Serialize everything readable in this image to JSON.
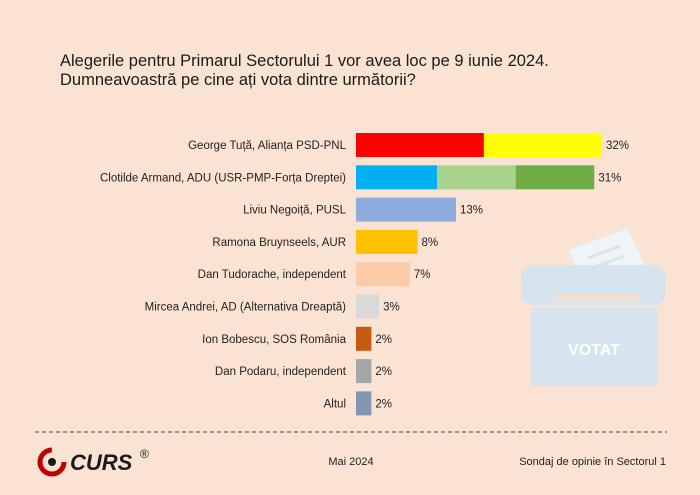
{
  "chart_data": {
    "type": "bar",
    "orientation": "horizontal",
    "title": "Alegerile pentru Primarul Sectorului 1 vor avea loc pe 9 iunie 2024.\nDumneavoastră pe cine ați vota dintre următorii?",
    "categories": [
      "George Tuță, Alianța PSD-PNL",
      "Clotilde Armand, ADU (USR-PMP-Forța Dreptei)",
      "Liviu Negoiță, PUSL",
      "Ramona Bruynseels, AUR",
      "Dan Tudorache, independent",
      "Mircea Andrei, AD (Alternativa Dreaptă)",
      "Ion Bobescu, SOS România",
      "Dan Podaru, independent",
      "Altul"
    ],
    "values": [
      32,
      31,
      13,
      8,
      7,
      3,
      2,
      2,
      2
    ],
    "value_labels": [
      "32%",
      "31%",
      "13%",
      "8%",
      "7%",
      "3%",
      "2%",
      "2%",
      "2%"
    ],
    "bar_colors": [
      [
        "#ff0000",
        "#ffff00"
      ],
      [
        "#00b0f0",
        "#a9d18e",
        "#70ad47"
      ],
      [
        "#8faadc"
      ],
      [
        "#ffc000"
      ],
      [
        "#fbcaa6"
      ],
      [
        "#d9d9d9"
      ],
      [
        "#c55a11"
      ],
      [
        "#a6a6a6"
      ],
      [
        "#8497b0"
      ]
    ],
    "segment_splits": [
      [
        0.52,
        0.48
      ],
      [
        0.34,
        0.33,
        0.33
      ],
      [
        1
      ],
      [
        1
      ],
      [
        1
      ],
      [
        1
      ],
      [
        1
      ],
      [
        1
      ],
      [
        1
      ]
    ],
    "xlim": [
      0,
      32
    ]
  },
  "footer": {
    "logo_text": "CURS",
    "registered": "®",
    "date": "Mai 2024",
    "source": "Sondaj de opinie în Sectorul 1"
  },
  "ballot_box": {
    "label": "VOTAT"
  },
  "colors": {
    "background": "#fbe3d3",
    "box": "#d6e4ef",
    "logo_red": "#c00000"
  }
}
